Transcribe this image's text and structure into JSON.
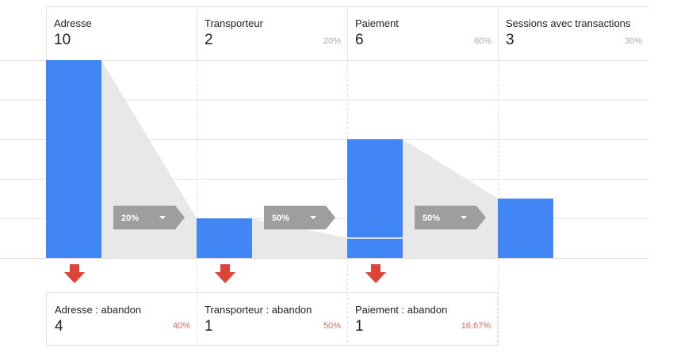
{
  "chart_data": {
    "type": "bar",
    "ylim": [
      0,
      10
    ],
    "steps": [
      {
        "name": "Adresse",
        "count": 10,
        "value": 10,
        "percent": ""
      },
      {
        "name": "Transporteur",
        "count": 2,
        "value": 2,
        "percent": "20%"
      },
      {
        "name": "Paiement",
        "count": 6,
        "value": 6,
        "percent": "60%"
      },
      {
        "name": "Sessions avec transactions",
        "count": 3,
        "value": 3,
        "percent": "30%"
      }
    ],
    "conversions": [
      {
        "label": "20%"
      },
      {
        "label": "50%"
      },
      {
        "label": "50%"
      }
    ],
    "dropoffs": [
      {
        "name": "Adresse : abandon",
        "count": 4,
        "percent": "40%"
      },
      {
        "name": "Transporteur : abandon",
        "count": 1,
        "percent": "50%"
      },
      {
        "name": "Paiement : abandon",
        "count": 1,
        "percent": "16.67%"
      }
    ],
    "colors": {
      "bar": "#4285f4",
      "funnel_fill": "#e8e8e8",
      "tag": "#9e9e9e",
      "arrow": "#db4437",
      "drop_pct": "#e06b5b"
    }
  }
}
